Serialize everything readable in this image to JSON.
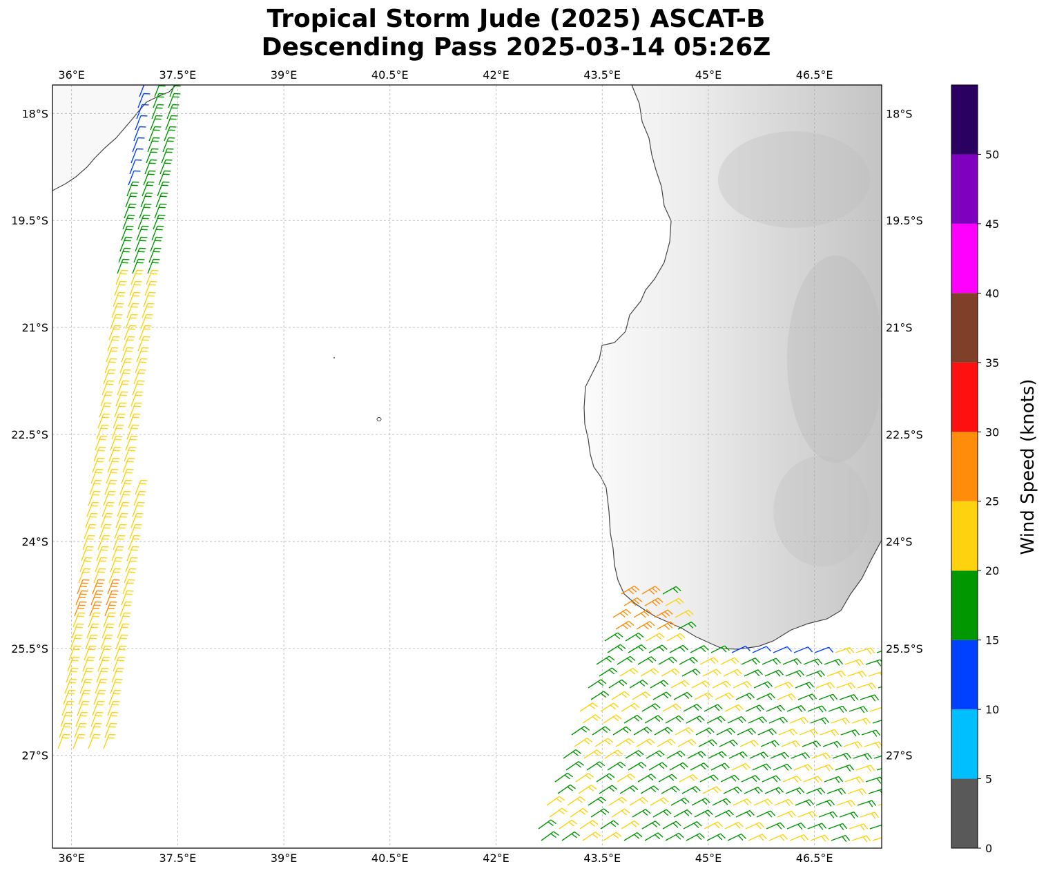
{
  "title_line1": "Tropical Storm Jude (2025) ASCAT-B",
  "title_line2": "Descending Pass 2025-03-14 05:26Z",
  "map": {
    "lon_labels": [
      "36°E",
      "37.5°E",
      "39°E",
      "40.5°E",
      "42°E",
      "43.5°E",
      "45°E",
      "46.5°E"
    ],
    "lat_labels": [
      "18°S",
      "19.5°S",
      "21°S",
      "22.5°S",
      "24°S",
      "25.5°S",
      "27°S"
    ],
    "lon_values": [
      36,
      37.5,
      39,
      40.5,
      42,
      43.5,
      45,
      46.5
    ],
    "lat_values": [
      -18,
      -19.5,
      -21,
      -22.5,
      -24,
      -25.5,
      -27
    ],
    "extent": {
      "lon_min": 35.73,
      "lon_max": 47.45,
      "lat_min": -28.3,
      "lat_max": -17.6
    },
    "gridlines": true
  },
  "colorbar": {
    "label": "Wind Speed (knots)",
    "tick_labels": [
      "0",
      "5",
      "10",
      "15",
      "20",
      "25",
      "30",
      "35",
      "40",
      "45",
      "50"
    ],
    "bins": [
      {
        "from": 0,
        "to": 5,
        "color": "#595959"
      },
      {
        "from": 5,
        "to": 10,
        "color": "#00bfff"
      },
      {
        "from": 10,
        "to": 15,
        "color": "#0040ff"
      },
      {
        "from": 15,
        "to": 20,
        "color": "#009700"
      },
      {
        "from": 20,
        "to": 25,
        "color": "#ffd20f"
      },
      {
        "from": 25,
        "to": 30,
        "color": "#ff8c0a"
      },
      {
        "from": 30,
        "to": 35,
        "color": "#ff1010"
      },
      {
        "from": 35,
        "to": 40,
        "color": "#7f3f28"
      },
      {
        "from": 40,
        "to": 45,
        "color": "#ff00ff"
      },
      {
        "from": 45,
        "to": 50,
        "color": "#8000bf"
      },
      {
        "from": 50,
        "to": 55,
        "color": "#2a0060"
      }
    ],
    "max": 55
  },
  "legend_colors": {
    "land_coast": "#444444",
    "grid": "#b0b0b0"
  }
}
